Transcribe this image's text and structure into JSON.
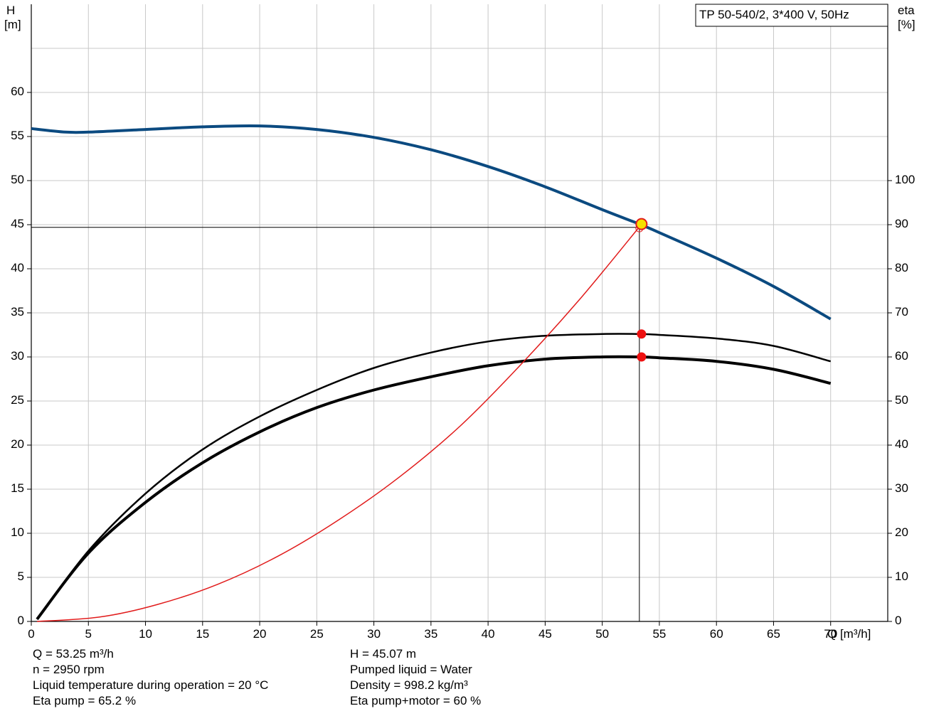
{
  "chart_data": {
    "type": "line",
    "title": "TP 50-540/2, 3*400 V, 50Hz",
    "x_axis": {
      "label": "Q [m³/h]",
      "range": [
        0,
        75
      ],
      "ticks": [
        "0",
        "5",
        "10",
        "15",
        "20",
        "25",
        "30",
        "35",
        "40",
        "45",
        "50",
        "55",
        "60",
        "65",
        "70"
      ]
    },
    "y_left_axis": {
      "label_line1": "H",
      "label_line2": "[m]",
      "range": [
        0,
        70
      ],
      "ticks": [
        "0",
        "5",
        "10",
        "15",
        "20",
        "25",
        "30",
        "35",
        "40",
        "45",
        "50",
        "55",
        "60"
      ]
    },
    "y_right_axis": {
      "label_line1": "eta",
      "label_line2": "[%]",
      "range": [
        0,
        140
      ],
      "ticks": [
        "0",
        "10",
        "20",
        "30",
        "40",
        "50",
        "60",
        "70",
        "80",
        "90",
        "100"
      ]
    },
    "grid": true,
    "series": [
      {
        "axis": "left",
        "color": "#0b4a80",
        "style": "head",
        "x": [
          0,
          3,
          5,
          10,
          15,
          20,
          25,
          30,
          35,
          40,
          45,
          50,
          53.25,
          55,
          60,
          65,
          70
        ],
        "y": [
          55.9,
          55.5,
          55.5,
          55.8,
          56.1,
          56.2,
          55.8,
          54.9,
          53.5,
          51.6,
          49.3,
          46.7,
          45.07,
          44.1,
          41.2,
          38.0,
          34.3
        ]
      },
      {
        "axis": "right",
        "color": "#000000",
        "style": "eta_pump",
        "x": [
          0.5,
          5,
          10,
          15,
          20,
          25,
          30,
          35,
          40,
          45,
          50,
          53.25,
          55,
          60,
          65,
          70
        ],
        "y": [
          0.5,
          16,
          29,
          39,
          46.5,
          52.5,
          57.5,
          61,
          63.5,
          64.8,
          65.2,
          65.2,
          65,
          64.2,
          62.5,
          59
        ]
      },
      {
        "axis": "right",
        "color": "#000000",
        "style": "eta_total",
        "x": [
          0.5,
          5,
          10,
          15,
          20,
          25,
          30,
          35,
          40,
          45,
          50,
          53.25,
          55,
          60,
          65,
          70
        ],
        "y": [
          0.5,
          15.5,
          27,
          36,
          43,
          48.5,
          52.5,
          55.5,
          58,
          59.5,
          60,
          60,
          59.8,
          59,
          57.2,
          54
        ]
      },
      {
        "axis": "right",
        "color": "#e11b1b",
        "style": "power",
        "x": [
          0.5,
          6,
          11,
          16.3,
          21.6,
          26.9,
          32.2,
          37.5,
          42.7,
          48,
          53.25
        ],
        "y": [
          0,
          1,
          3.8,
          8.4,
          14.8,
          23,
          32.7,
          44.2,
          57.8,
          73,
          89.5
        ]
      }
    ],
    "operating_point": {
      "q": 53.25,
      "h": 45.07,
      "guide_h": 44.7,
      "eta_pump": 65.2,
      "eta_total": 60
    }
  },
  "info": {
    "q": "Q = 53.25 m³/h",
    "n": "n = 2950 rpm",
    "temp": "Liquid temperature during operation = 20 °C",
    "eta_pump": "Eta pump = 65.2 %",
    "h": "H = 45.07 m",
    "liquid": "Pumped liquid = Water",
    "density": "Density = 998.2 kg/m³",
    "eta_total": "Eta pump+motor = 60 %"
  }
}
